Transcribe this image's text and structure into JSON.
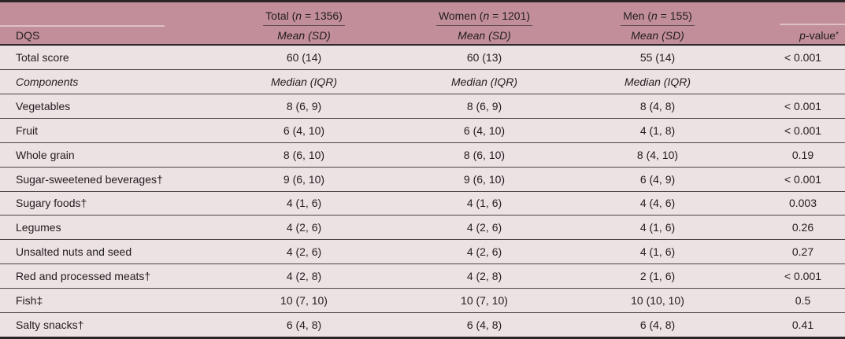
{
  "table": {
    "header": {
      "col1_label": "DQS",
      "groups": [
        {
          "pre": "Total (",
          "n": "n",
          "post": " = 1356)",
          "stat": "Mean (SD)"
        },
        {
          "pre": "Women (",
          "n": "n",
          "post": " = 1201)",
          "stat": "Mean (SD)"
        },
        {
          "pre": "Men (",
          "n": "n",
          "post": " = 155)",
          "stat": "Mean (SD)"
        }
      ],
      "pvalue": {
        "p": "p",
        "rest": "-value",
        "sup": "*"
      }
    },
    "rows": [
      {
        "label": "Total score",
        "total": "60 (14)",
        "women": "60 (13)",
        "men": "55 (14)",
        "p": "< 0.001"
      },
      {
        "label": "Components",
        "total": "Median (IQR)",
        "women": "Median (IQR)",
        "men": "Median (IQR)",
        "p": ""
      },
      {
        "label": "Vegetables",
        "total": "8 (6, 9)",
        "women": "8 (6, 9)",
        "men": "8 (4, 8)",
        "p": "< 0.001"
      },
      {
        "label": "Fruit",
        "total": "6 (4, 10)",
        "women": "6 (4, 10)",
        "men": "4 (1, 8)",
        "p": "< 0.001"
      },
      {
        "label": "Whole grain",
        "total": "8 (6, 10)",
        "women": "8 (6, 10)",
        "men": "8 (4, 10)",
        "p": "0.19"
      },
      {
        "label": "Sugar-sweetened beverages†",
        "total": "9 (6, 10)",
        "women": "9 (6, 10)",
        "men": "6 (4, 9)",
        "p": "< 0.001"
      },
      {
        "label": "Sugary foods†",
        "total": "4 (1, 6)",
        "women": "4 (1, 6)",
        "men": "4 (4, 6)",
        "p": "0.003"
      },
      {
        "label": "Legumes",
        "total": "4 (2, 6)",
        "women": "4 (2, 6)",
        "men": "4 (1, 6)",
        "p": "0.26"
      },
      {
        "label": "Unsalted nuts and seed",
        "total": "4 (2, 6)",
        "women": "4 (2, 6)",
        "men": "4 (1, 6)",
        "p": "0.27"
      },
      {
        "label": "Red and processed meats†",
        "total": "4 (2, 8)",
        "women": "4 (2, 8)",
        "men": "2 (1, 6)",
        "p": "< 0.001"
      },
      {
        "label": "Fish‡",
        "total": "10 (7, 10)",
        "women": "10 (7, 10)",
        "men": "10 (10, 10)",
        "p": "0.5"
      },
      {
        "label": "Salty snacks†",
        "total": "6 (4, 8)",
        "women": "6 (4, 8)",
        "men": "6 (4, 8)",
        "p": "0.41"
      }
    ],
    "colors": {
      "header_bg": "#c28e99",
      "body_bg": "#ece1e3",
      "rule_dark": "#2b2528",
      "row_separator": "#4d4649"
    }
  }
}
